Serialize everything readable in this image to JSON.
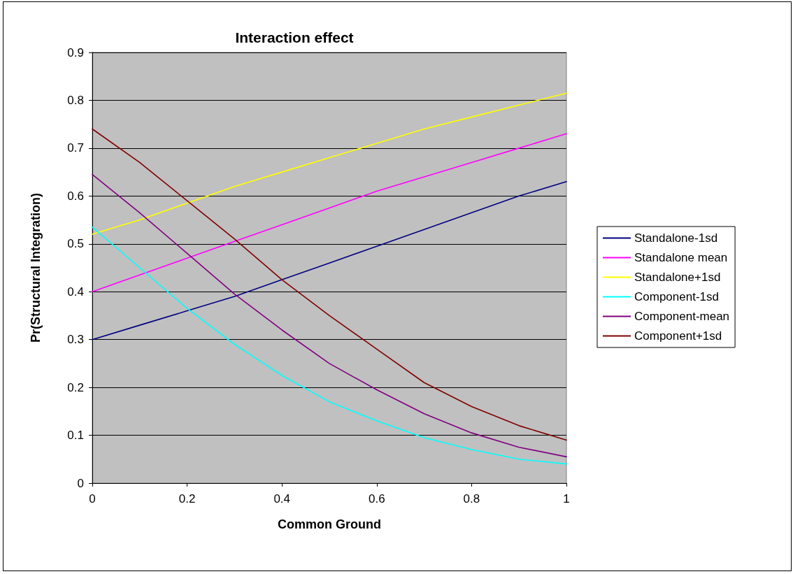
{
  "chart_data": {
    "type": "line",
    "title": "Interaction effect",
    "xlabel": "Common Ground",
    "ylabel": "Pr(Structural Integration)",
    "x": [
      0,
      0.1,
      0.2,
      0.3,
      0.4,
      0.5,
      0.6,
      0.7,
      0.8,
      0.9,
      1
    ],
    "series": [
      {
        "name": "Standalone-1sd",
        "color": "#000080",
        "values": [
          0.3,
          0.33,
          0.36,
          0.39,
          0.425,
          0.46,
          0.495,
          0.53,
          0.565,
          0.6,
          0.63
        ]
      },
      {
        "name": "Standalone mean",
        "color": "#ff00ff",
        "values": [
          0.4,
          0.435,
          0.47,
          0.505,
          0.54,
          0.575,
          0.61,
          0.64,
          0.67,
          0.7,
          0.73
        ]
      },
      {
        "name": "Standalone+1sd",
        "color": "#ffff00",
        "values": [
          0.52,
          0.55,
          0.585,
          0.62,
          0.65,
          0.68,
          0.71,
          0.74,
          0.765,
          0.79,
          0.815
        ]
      },
      {
        "name": "Component-1sd",
        "color": "#00ffff",
        "values": [
          0.535,
          0.45,
          0.365,
          0.29,
          0.225,
          0.17,
          0.13,
          0.095,
          0.07,
          0.05,
          0.04
        ]
      },
      {
        "name": "Component-mean",
        "color": "#800080",
        "values": [
          0.645,
          0.565,
          0.48,
          0.395,
          0.32,
          0.25,
          0.195,
          0.145,
          0.105,
          0.075,
          0.055
        ]
      },
      {
        "name": "Component+1sd",
        "color": "#800000",
        "values": [
          0.74,
          0.67,
          0.59,
          0.51,
          0.425,
          0.35,
          0.28,
          0.21,
          0.16,
          0.12,
          0.09
        ]
      }
    ],
    "xlim": [
      0,
      1
    ],
    "xticks": [
      0,
      0.2,
      0.4,
      0.6,
      0.8,
      1
    ],
    "ylim": [
      0,
      0.9
    ],
    "yticks": [
      0,
      0.1,
      0.2,
      0.3,
      0.4,
      0.5,
      0.6,
      0.7,
      0.8,
      0.9
    ],
    "grid": "y",
    "legend": "right",
    "marker": "none",
    "line_style": "solid"
  }
}
